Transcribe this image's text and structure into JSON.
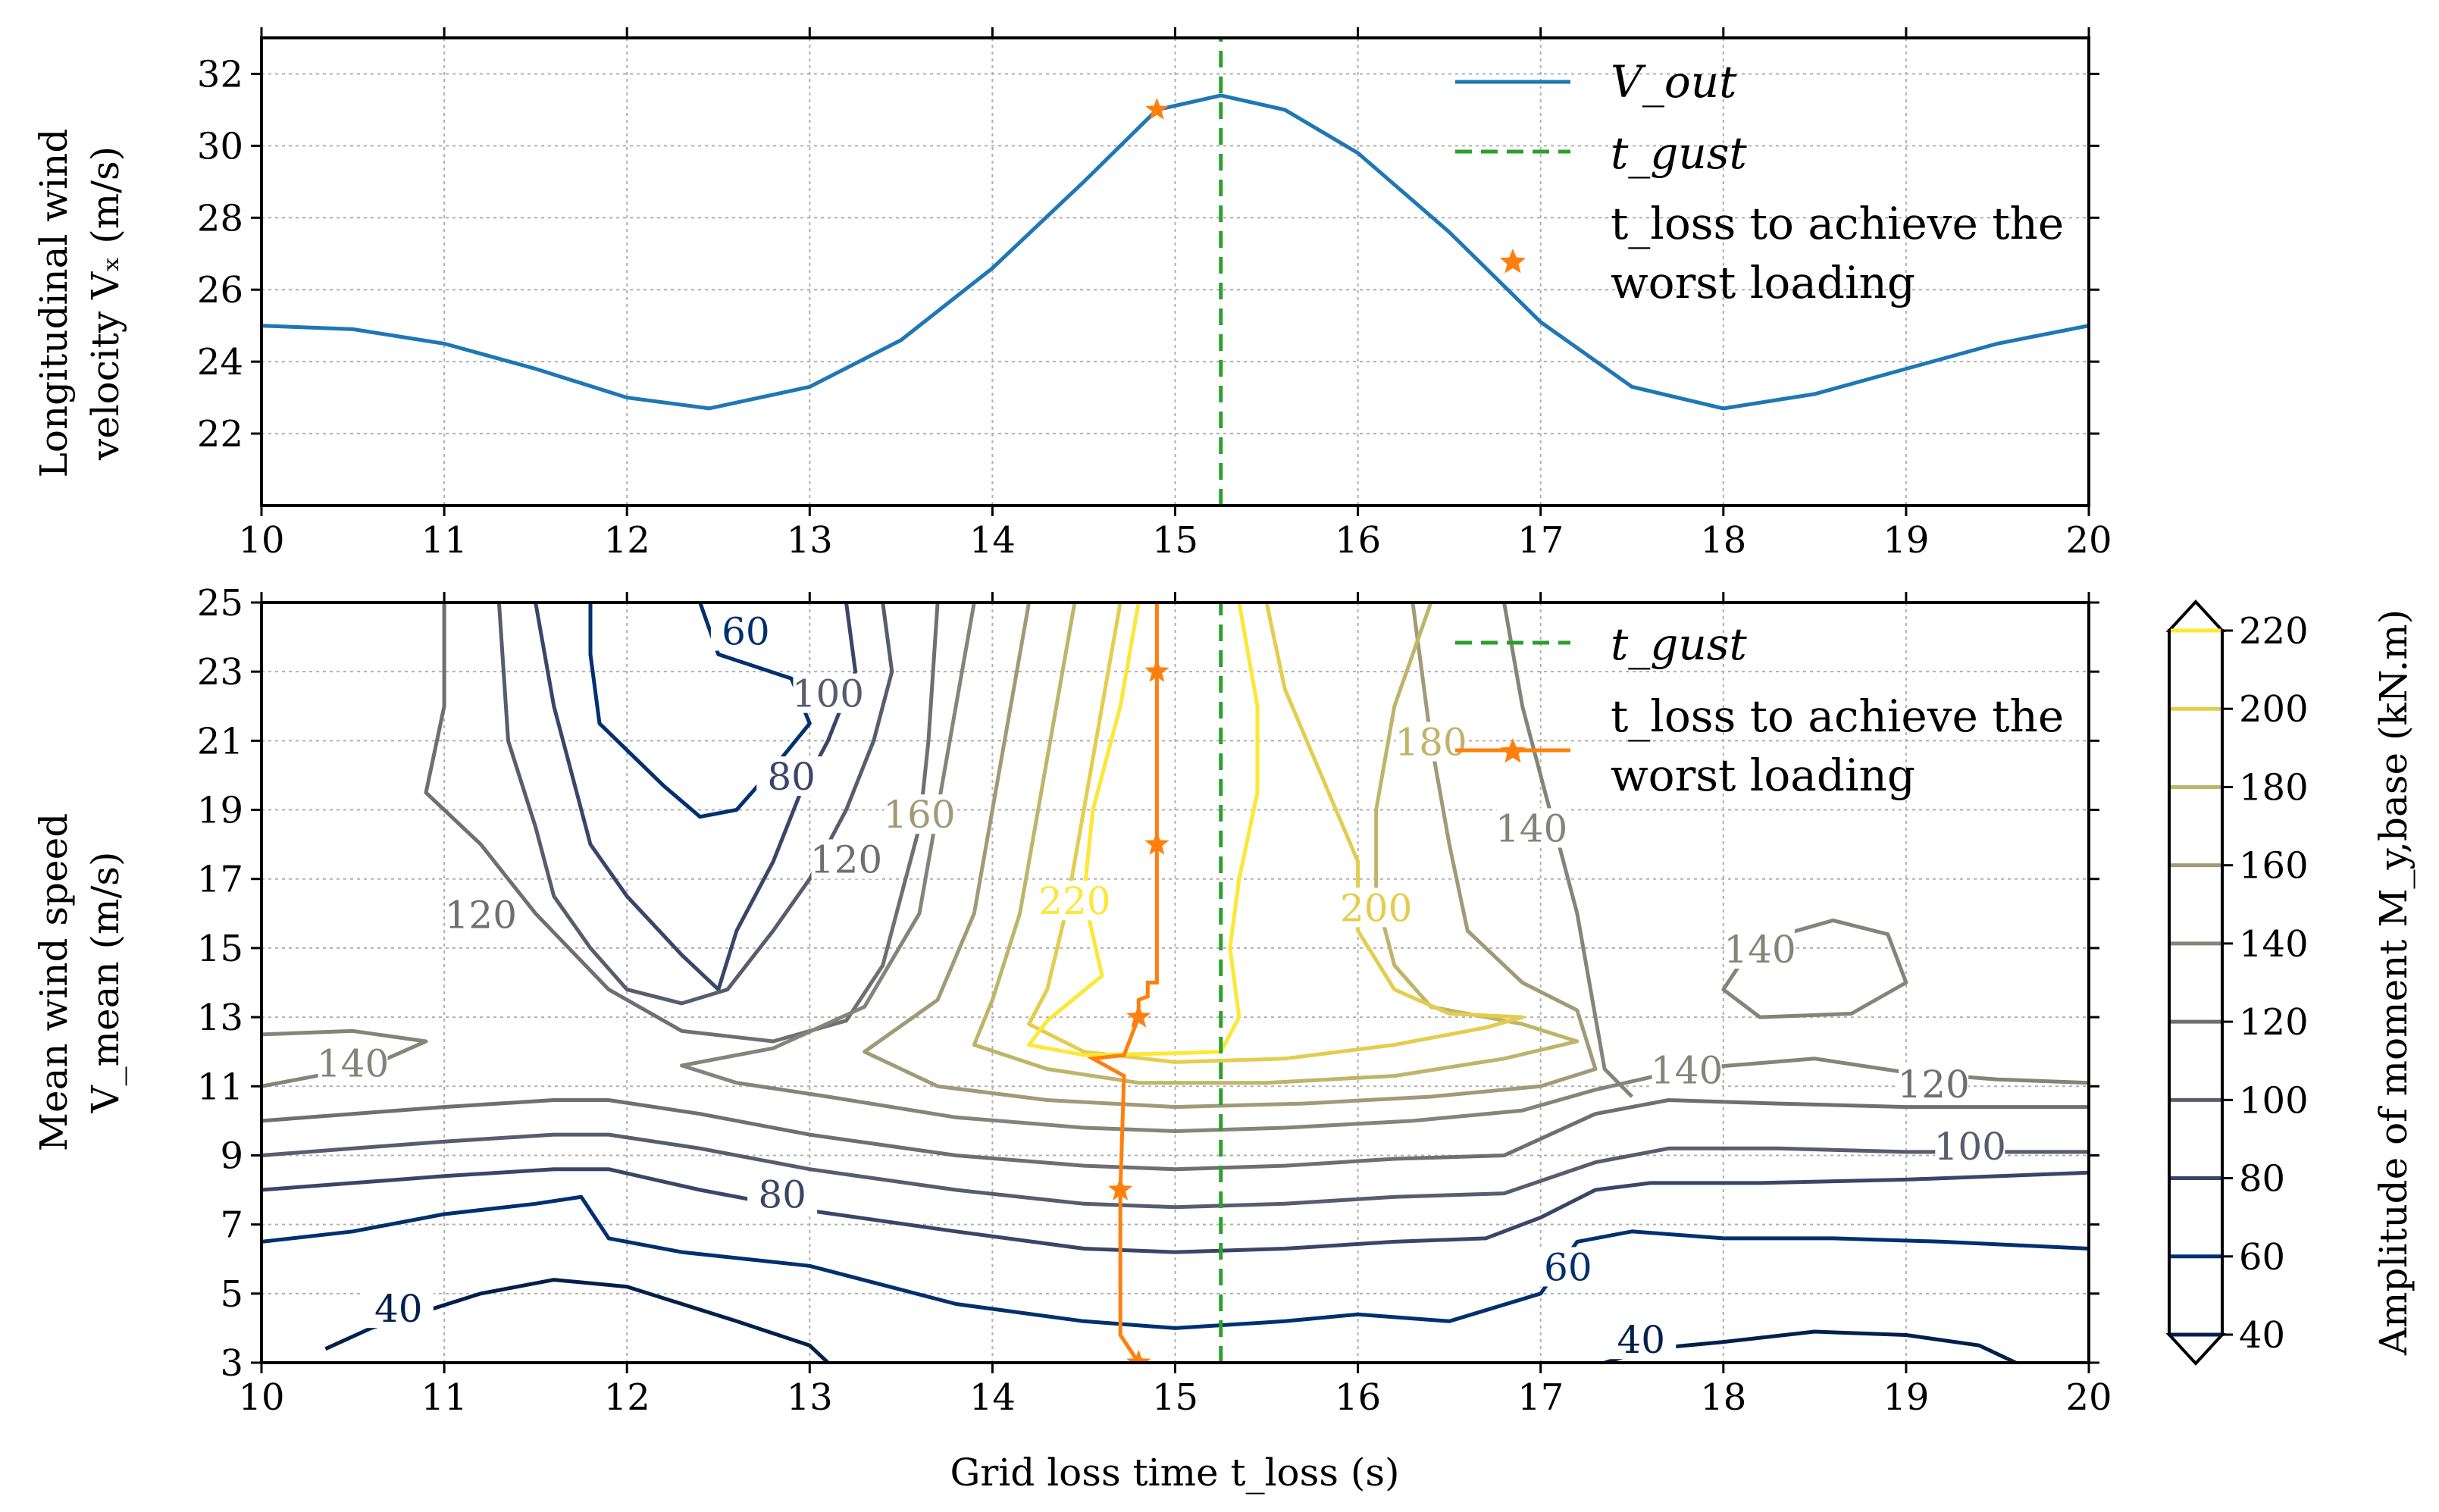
{
  "colors": {
    "vout": "#1f77b4",
    "gust": "#2ca02c",
    "worst": "#ff7f0e",
    "grid": "#b0b0b0"
  },
  "top": {
    "ylabel_line1": "Longitudinal wind",
    "ylabel_line2": "velocity Vₓ (m/s)",
    "legend": {
      "vout": "V_out",
      "gust": "t_gust",
      "worst_line1": "t_loss to achieve the",
      "worst_line2": "worst loading"
    }
  },
  "bottom": {
    "ylabel_line1": "Mean wind speed",
    "ylabel_line2": "V_mean (m/s)",
    "xlabel": "Grid loss time t_loss (s)",
    "legend": {
      "gust": "t_gust",
      "worst_line1": "t_loss to achieve the",
      "worst_line2": "worst loading"
    }
  },
  "colorbar": {
    "label": "Amplitude of moment M_y,base (kN.m)",
    "levels": [
      40,
      60,
      80,
      100,
      120,
      140,
      160,
      180,
      200,
      220
    ]
  },
  "chart_data": [
    {
      "type": "line",
      "title": "",
      "xlabel": "",
      "ylabel": "Longitudinal wind velocity V_x (m/s)",
      "xlim": [
        10,
        20
      ],
      "ylim": [
        20,
        33
      ],
      "x_ticks": [
        10,
        11,
        12,
        13,
        14,
        15,
        16,
        17,
        18,
        19,
        20
      ],
      "y_ticks": [
        22,
        24,
        26,
        28,
        30,
        32
      ],
      "grid": true,
      "series": [
        {
          "name": "V_out",
          "x": [
            10.0,
            10.5,
            11.0,
            11.5,
            12.0,
            12.45,
            13.0,
            13.5,
            14.0,
            14.5,
            14.9,
            15.25,
            15.6,
            16.0,
            16.5,
            17.0,
            17.5,
            18.0,
            18.5,
            19.0,
            19.5,
            20.0
          ],
          "y": [
            25.0,
            24.9,
            24.5,
            23.8,
            23.0,
            22.7,
            23.3,
            24.6,
            26.6,
            29.0,
            31.0,
            31.4,
            31.0,
            29.8,
            27.6,
            25.1,
            23.3,
            22.7,
            23.1,
            23.8,
            24.5,
            25.0
          ]
        },
        {
          "name": "t_gust",
          "x": [
            15.25,
            15.25
          ],
          "y": [
            20,
            33
          ]
        },
        {
          "name": "t_loss to achieve the worst loading",
          "x": [
            14.9
          ],
          "y": [
            31.0
          ]
        }
      ],
      "legend_position": "top-right"
    },
    {
      "type": "contour",
      "title": "",
      "xlabel": "Grid loss time t_loss (s)",
      "ylabel": "Mean wind speed V_mean (m/s)",
      "xlim": [
        10,
        20
      ],
      "ylim": [
        3,
        25
      ],
      "x_ticks": [
        10,
        11,
        12,
        13,
        14,
        15,
        16,
        17,
        18,
        19,
        20
      ],
      "y_ticks": [
        3,
        5,
        7,
        9,
        11,
        13,
        15,
        17,
        19,
        21,
        23,
        25
      ],
      "grid": true,
      "contour_levels": [
        40,
        60,
        80,
        100,
        120,
        140,
        160,
        180,
        200,
        220
      ],
      "contour_level_colors": [
        "#00204c",
        "#00306f",
        "#3a4669",
        "#575c6e",
        "#6f6f73",
        "#858479",
        "#a09a77",
        "#c0b46a",
        "#e3cd4f",
        "#fde737"
      ],
      "contour_labels": [
        {
          "text": "40",
          "x": 10.75,
          "y": 4.4
        },
        {
          "text": "40",
          "x": 17.55,
          "y": 3.5
        },
        {
          "text": "60",
          "x": 17.15,
          "y": 5.6
        },
        {
          "text": "60",
          "x": 12.65,
          "y": 24.0
        },
        {
          "text": "80",
          "x": 12.85,
          "y": 7.7
        },
        {
          "text": "80",
          "x": 12.9,
          "y": 19.8
        },
        {
          "text": "100",
          "x": 13.1,
          "y": 22.2
        },
        {
          "text": "100",
          "x": 19.35,
          "y": 9.1
        },
        {
          "text": "120",
          "x": 11.2,
          "y": 15.8
        },
        {
          "text": "120",
          "x": 13.2,
          "y": 17.4
        },
        {
          "text": "120",
          "x": 19.15,
          "y": 10.9
        },
        {
          "text": "140",
          "x": 10.5,
          "y": 11.5
        },
        {
          "text": "140",
          "x": 17.8,
          "y": 11.3
        },
        {
          "text": "140",
          "x": 18.2,
          "y": 14.8
        },
        {
          "text": "140",
          "x": 16.95,
          "y": 18.3
        },
        {
          "text": "160",
          "x": 13.6,
          "y": 18.7
        },
        {
          "text": "180",
          "x": 16.4,
          "y": 20.8
        },
        {
          "text": "200",
          "x": 16.1,
          "y": 16.0
        },
        {
          "text": "220",
          "x": 14.45,
          "y": 16.2
        }
      ],
      "series": [
        {
          "name": "t_gust",
          "x": [
            15.25,
            15.25
          ],
          "y": [
            3,
            25
          ]
        },
        {
          "name": "t_loss to achieve the worst loading",
          "x": [
            14.8,
            14.7,
            14.7,
            14.72,
            14.55,
            14.72,
            14.8,
            14.8,
            14.85,
            14.85,
            14.9,
            14.9,
            14.9
          ],
          "y": [
            3.0,
            3.8,
            8.0,
            11.3,
            11.8,
            11.9,
            13.0,
            13.5,
            13.6,
            14.0,
            14.0,
            18.0,
            25.0
          ],
          "markers": [
            [
              14.8,
              3.0
            ],
            [
              14.7,
              8.0
            ],
            [
              14.8,
              13.0
            ],
            [
              14.9,
              18.0
            ],
            [
              14.9,
              23.0
            ]
          ]
        }
      ],
      "legend_position": "top-right"
    }
  ]
}
